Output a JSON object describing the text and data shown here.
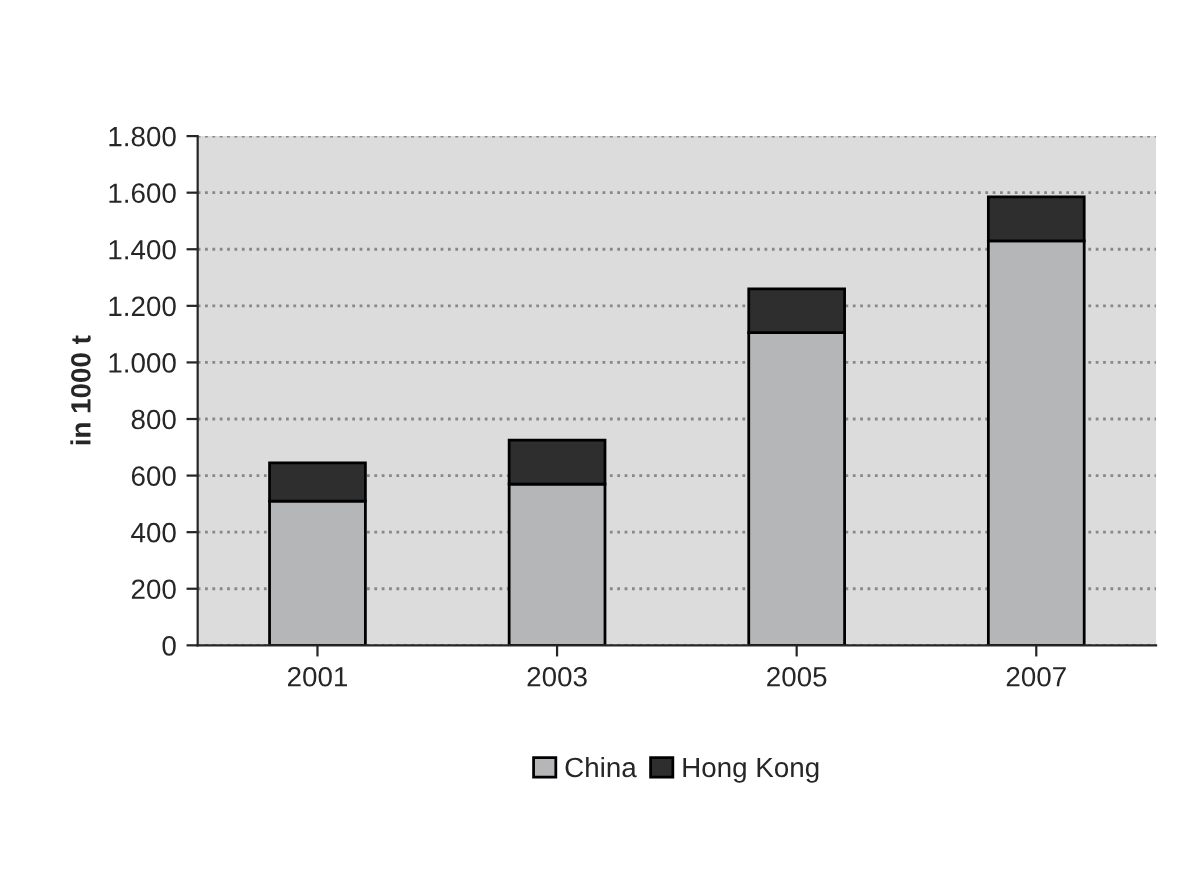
{
  "chart_data": {
    "type": "bar",
    "stacked": true,
    "ylabel": "in 1000 t",
    "categories": [
      "2001",
      "2003",
      "2005",
      "2007"
    ],
    "series": [
      {
        "name": "China",
        "color": "#b4b6b8",
        "values": [
          510,
          570,
          1105,
          1430
        ]
      },
      {
        "name": "Hong Kong",
        "color": "#2e2e2e",
        "values": [
          135,
          155,
          155,
          155
        ]
      }
    ],
    "ylim": [
      0,
      1800
    ],
    "yticks": [
      0,
      200,
      400,
      600,
      800,
      {
        "value": 1000,
        "label": "1.000"
      },
      {
        "value": 1200,
        "label": "1.200"
      },
      {
        "value": 1400,
        "label": "1.400"
      },
      {
        "value": 1600,
        "label": "1.600"
      },
      {
        "value": 1800,
        "label": "1.800"
      }
    ],
    "grid": "y",
    "legend": "bottom"
  }
}
